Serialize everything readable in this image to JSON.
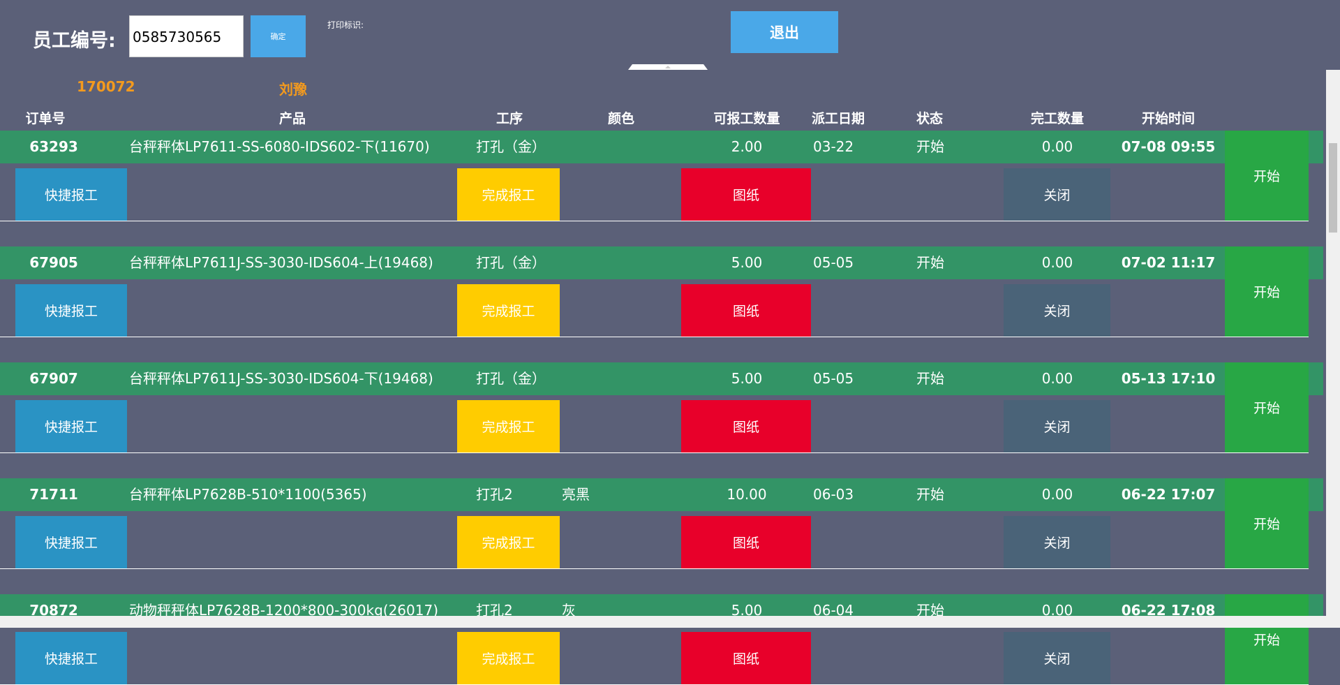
{
  "header": {
    "label": "员工编号:",
    "employee_no": "0585730565",
    "confirm": "确定",
    "print_label": "打印标识:",
    "exit": "退出",
    "employee_id": "170072",
    "employee_name": "刘豫"
  },
  "table": {
    "columns": [
      "订单号",
      "产品",
      "工序",
      "颜色",
      "可报工数量",
      "派工日期",
      "状态",
      "完工数量",
      "开始时间"
    ],
    "rows": [
      [
        "63293",
        "台秤秤体LP7611-SS-6080-IDS602-下(11670)",
        "打孔（金）",
        null,
        "2.00",
        "03-22",
        "开始",
        "0.00",
        "07-08 09:55"
      ],
      [
        "67905",
        "台秤秤体LP7611J-SS-3030-IDS604-上(19468)",
        "打孔（金）",
        null,
        "5.00",
        "05-05",
        "开始",
        "0.00",
        "07-02 11:17"
      ],
      [
        "67907",
        "台秤秤体LP7611J-SS-3030-IDS604-下(19468)",
        "打孔（金）",
        null,
        "5.00",
        "05-05",
        "开始",
        "0.00",
        "05-13 17:10"
      ],
      [
        "71711",
        "台秤秤体LP7628B-510*1100(5365)",
        "打孔2",
        "亮黑",
        "10.00",
        "06-03",
        "开始",
        "0.00",
        "06-22 17:07"
      ],
      [
        "70872",
        "动物秤秤体LP7628B-1200*800-300kg(26017)",
        "打孔2",
        "灰",
        "5.00",
        "06-04",
        "开始",
        "0.00",
        "06-22 17:08"
      ]
    ],
    "buttons": {
      "quick": "快捷报工",
      "complete": "完成报工",
      "drawing": "图纸",
      "close": "关闭",
      "start": "开始"
    }
  }
}
